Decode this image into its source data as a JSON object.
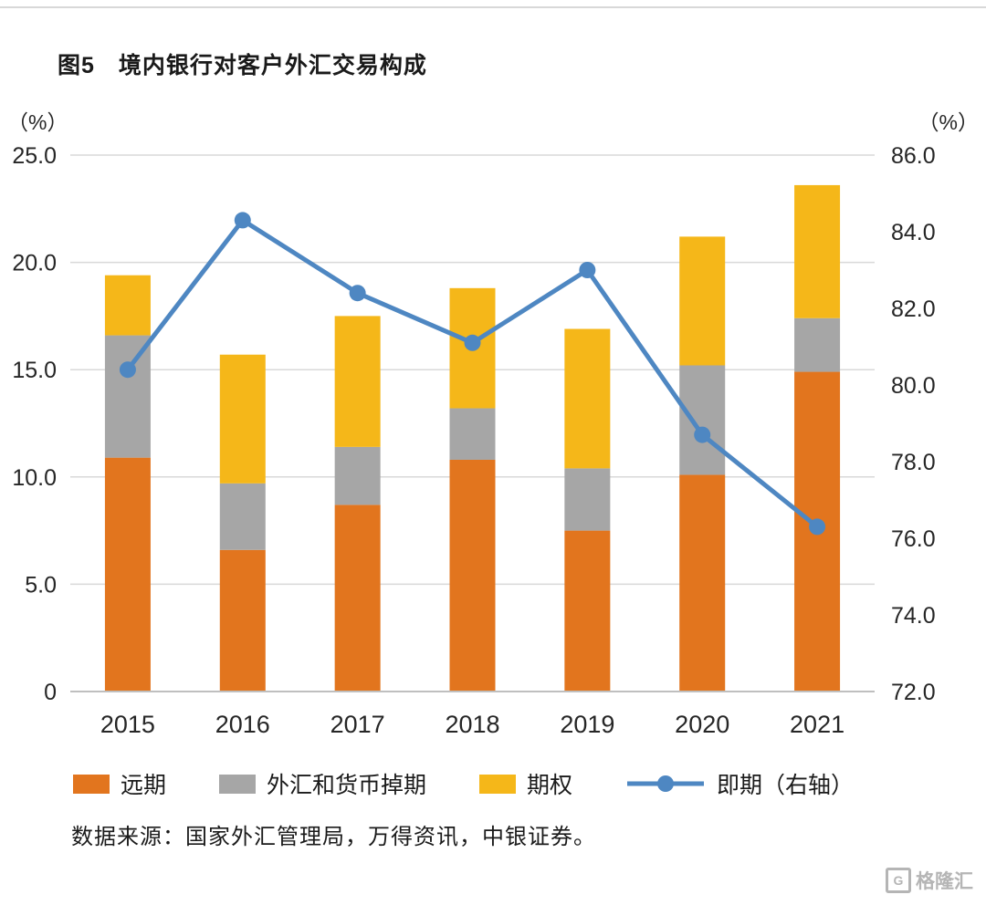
{
  "page": {
    "title": "图5　境内银行对客户外汇交易构成",
    "source": "数据来源：国家外汇管理局，万得资讯，中银证券。",
    "watermark": "格隆汇",
    "watermark_logo": "G"
  },
  "chart_data": {
    "type": "bar",
    "subtype": "stacked-bar-with-line",
    "title": "境内银行对客户外汇交易构成",
    "categories": [
      "2015",
      "2016",
      "2017",
      "2018",
      "2019",
      "2020",
      "2021"
    ],
    "bar_series": [
      {
        "name": "远期",
        "color": "#E2751E",
        "values": [
          10.9,
          6.6,
          8.7,
          10.8,
          7.5,
          10.1,
          14.9
        ]
      },
      {
        "name": "外汇和货币掉期",
        "color": "#A6A6A6",
        "values": [
          5.7,
          3.1,
          2.7,
          2.4,
          2.9,
          5.1,
          2.5
        ]
      },
      {
        "name": "期权",
        "color": "#F5B719",
        "values": [
          2.8,
          6.0,
          6.1,
          5.6,
          6.5,
          6.0,
          6.2
        ]
      }
    ],
    "line_series": {
      "name": "即期（右轴）",
      "color": "#4E87C2",
      "axis": "right",
      "values": [
        80.4,
        84.3,
        82.4,
        81.1,
        83.0,
        78.7,
        76.3
      ]
    },
    "left_axis": {
      "label": "（%）",
      "min": 0,
      "max": 25,
      "ticks": [
        "25.0",
        "20.0",
        "15.0",
        "10.0",
        "5.0",
        "0"
      ],
      "tick_values": [
        25,
        20,
        15,
        10,
        5,
        0
      ]
    },
    "right_axis": {
      "label": "（%）",
      "min": 72,
      "max": 86,
      "ticks": [
        "86.0",
        "84.0",
        "82.0",
        "80.0",
        "78.0",
        "76.0",
        "74.0",
        "72.0"
      ],
      "tick_values": [
        86,
        84,
        82,
        80,
        78,
        76,
        74,
        72
      ]
    },
    "grid": true,
    "legend_position": "bottom",
    "grid_color": "#d9d9d9",
    "axis_line_color": "#bfbfbf"
  }
}
